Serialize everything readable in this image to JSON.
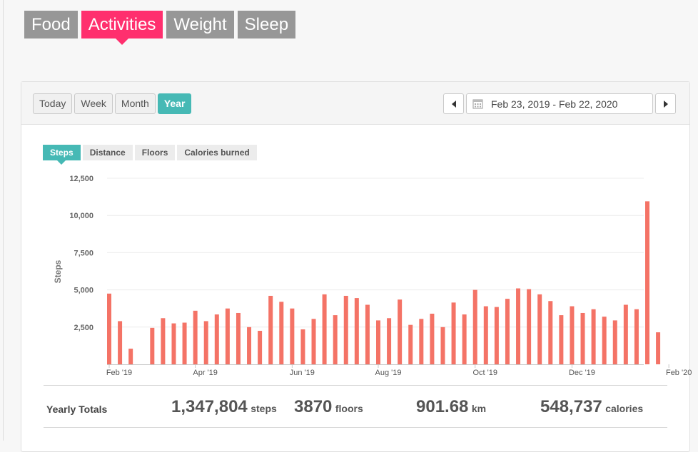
{
  "category_tabs": [
    {
      "label": "Food",
      "active": false
    },
    {
      "label": "Activities",
      "active": true
    },
    {
      "label": "Weight",
      "active": false
    },
    {
      "label": "Sleep",
      "active": false
    }
  ],
  "period_buttons": [
    {
      "label": "Today",
      "active": false
    },
    {
      "label": "Week",
      "active": false
    },
    {
      "label": "Month",
      "active": false
    },
    {
      "label": "Year",
      "active": true
    }
  ],
  "date_range": "Feb 23, 2019 - Feb 22, 2020",
  "metric_tabs": [
    {
      "label": "Steps",
      "active": true
    },
    {
      "label": "Distance",
      "active": false
    },
    {
      "label": "Floors",
      "active": false
    },
    {
      "label": "Calories burned",
      "active": false
    }
  ],
  "colors": {
    "bar": "#f47366",
    "accent": "#46b9b5",
    "active_category": "#ff2f6e"
  },
  "chart_data": {
    "type": "bar",
    "title": "",
    "xlabel": "",
    "ylabel": "Steps",
    "ylim": [
      0,
      12500
    ],
    "yticks": [
      "12,500",
      "10,000",
      "7,500",
      "5,000",
      "2,500"
    ],
    "ytick_values": [
      12500,
      10000,
      7500,
      5000,
      2500
    ],
    "xtick_labels": [
      "Feb '19",
      "Apr '19",
      "Jun '19",
      "Aug '19",
      "Oct '19",
      "Dec '19",
      "Feb '20"
    ],
    "xtick_week_index": [
      0,
      8,
      17,
      25,
      34,
      43,
      52
    ],
    "grid": true,
    "series": [
      {
        "values": [
          4750,
          2900,
          1050,
          0,
          2450,
          3100,
          2750,
          2800,
          3600,
          2900,
          3350,
          3750,
          3450,
          2500,
          2250,
          4600,
          4200,
          3750,
          2350,
          3050,
          4700,
          3300,
          4600,
          4450,
          4000,
          2950,
          3100,
          4350,
          2650,
          3050,
          3400,
          2500,
          4150,
          3350,
          5000,
          3900,
          3850,
          4400,
          5100,
          5050,
          4700,
          4250,
          3300,
          3900,
          3450,
          3700,
          3200,
          2950,
          4000,
          3700,
          10950,
          2150
        ]
      }
    ]
  },
  "totals": {
    "label": "Yearly Totals",
    "steps": {
      "value": "1,347,804",
      "unit": "steps"
    },
    "floors": {
      "value": "3870",
      "unit": "floors"
    },
    "distance": {
      "value": "901.68",
      "unit": "km"
    },
    "calories": {
      "value": "548,737",
      "unit": "calories"
    }
  }
}
